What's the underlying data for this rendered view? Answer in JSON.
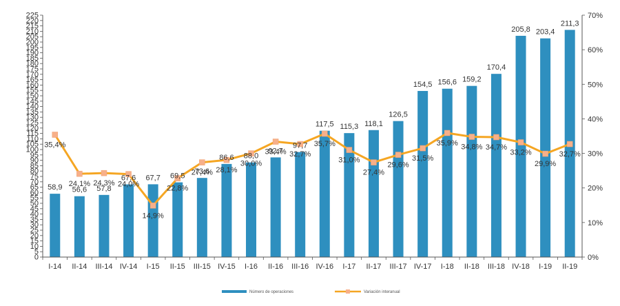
{
  "chart_data": {
    "type": "bar",
    "title": "",
    "xlabel": "",
    "ylabel": "",
    "categories": [
      "I-14",
      "II-14",
      "III-14",
      "IV-14",
      "I-15",
      "II-15",
      "III-15",
      "IV-15",
      "I-16",
      "II-16",
      "III-16",
      "IV-16",
      "I-17",
      "II-17",
      "III-17",
      "IV-17",
      "I-18",
      "II-18",
      "III-18",
      "IV-18",
      "I-19",
      "II-19"
    ],
    "series": [
      {
        "name": "Número de operaciones",
        "type": "bar",
        "axis": "left",
        "color": "#2e8fbf",
        "values": [
          58.9,
          56.6,
          57.8,
          67.6,
          67.7,
          69.5,
          73.6,
          86.6,
          88.0,
          92.7,
          97.7,
          117.5,
          115.3,
          118.1,
          126.5,
          154.5,
          156.6,
          159.2,
          170.4,
          205.8,
          203.4,
          211.3
        ],
        "labels": [
          "58,9",
          "56,6",
          "57,8",
          "67,6",
          "67,7",
          "69,5",
          "73,6",
          "86,6",
          "88,0",
          "92,7",
          "97,7",
          "117,5",
          "115,3",
          "118,1",
          "126,5",
          "154,5",
          "156,6",
          "159,2",
          "170,4",
          "205,8",
          "203,4",
          "211,3"
        ]
      },
      {
        "name": "Variación interanual",
        "type": "line",
        "axis": "right",
        "color": "#f5a623",
        "values": [
          35.4,
          24.1,
          24.3,
          24.0,
          14.9,
          22.8,
          27.4,
          28.1,
          30.0,
          33.4,
          32.7,
          35.7,
          31.0,
          27.4,
          29.6,
          31.5,
          35.9,
          34.8,
          34.7,
          33.2,
          29.9,
          32.7
        ],
        "labels": [
          "35,4%",
          "24,1%",
          "24,3%",
          "24,0%",
          "14,9%",
          "22,8%",
          "27,4%",
          "28,1%",
          "30,0%",
          "33,4%",
          "32,7%",
          "35,7%",
          "31,0%",
          "27,4%",
          "29,6%",
          "31,5%",
          "35,9%",
          "34,8%",
          "34,7%",
          "33,2%",
          "29,9%",
          "32,7%"
        ]
      }
    ],
    "y_left": {
      "min": 0,
      "max": 225,
      "step": 5
    },
    "y_right": {
      "min": 0,
      "max": 70,
      "step": 10,
      "tick_labels": [
        "0%",
        "10%",
        "20%",
        "30%",
        "40%",
        "50%",
        "60%",
        "70%"
      ]
    },
    "grid": false,
    "legend": "bottom-center"
  }
}
